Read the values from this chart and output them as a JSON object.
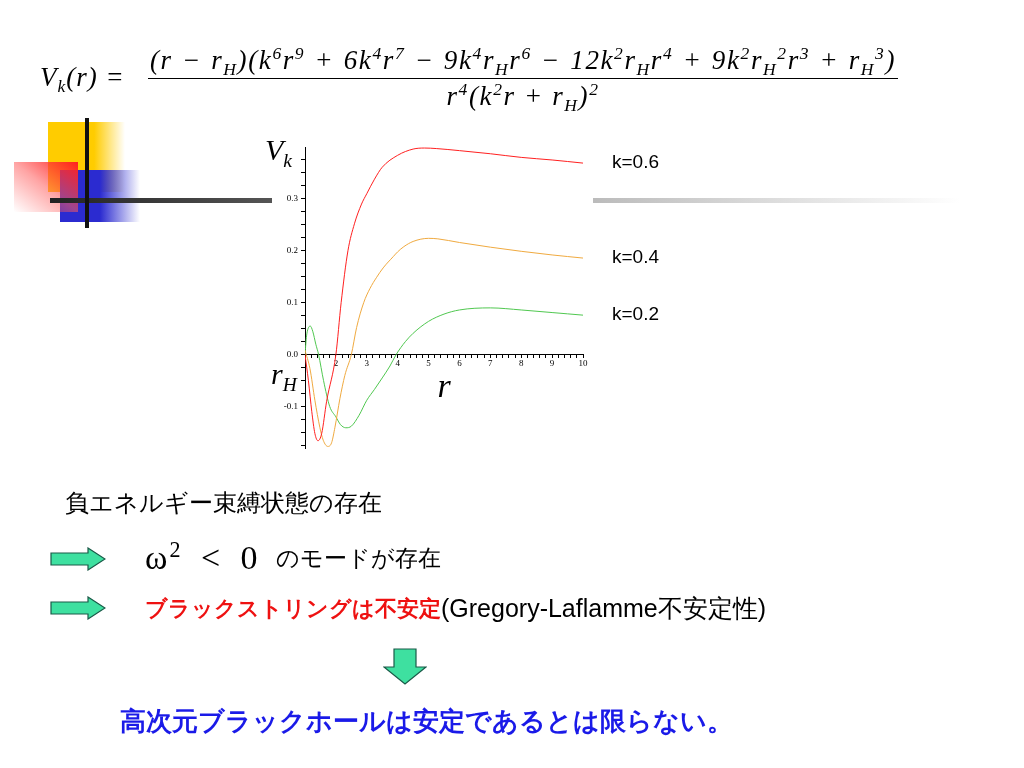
{
  "chart_data": {
    "type": "line",
    "xlabel": "r",
    "ylabel": "V$_{k}$",
    "xlim": [
      1,
      10
    ],
    "xticks": [
      {
        "value": 1.2,
        "label": null
      },
      {
        "value": 1.4,
        "label": null
      },
      {
        "value": 1.6,
        "label": null
      },
      {
        "value": 1.8,
        "label": null
      },
      2,
      {
        "value": 2.2,
        "label": null
      },
      {
        "value": 2.4,
        "label": null
      },
      {
        "value": 2.6,
        "label": null
      },
      {
        "value": 2.8,
        "label": null
      },
      3,
      {
        "value": 3.2,
        "label": null
      },
      {
        "value": 3.4,
        "label": null
      },
      {
        "value": 3.6,
        "label": null
      },
      {
        "value": 3.8,
        "label": null
      },
      4,
      {
        "value": 4.2,
        "label": null
      },
      {
        "value": 4.4,
        "label": null
      },
      {
        "value": 4.6,
        "label": null
      },
      {
        "value": 4.8,
        "label": null
      },
      5,
      {
        "value": 5.2,
        "label": null
      },
      {
        "value": 5.4,
        "label": null
      },
      {
        "value": 5.6,
        "label": null
      },
      {
        "value": 5.8,
        "label": null
      },
      6,
      {
        "value": 6.2,
        "label": null
      },
      {
        "value": 6.4,
        "label": null
      },
      {
        "value": 6.6,
        "label": null
      },
      {
        "value": 6.8,
        "label": null
      },
      7,
      {
        "value": 7.2,
        "label": null
      },
      {
        "value": 7.4,
        "label": null
      },
      {
        "value": 7.6,
        "label": null
      },
      {
        "value": 7.8,
        "label": null
      },
      8,
      {
        "value": 8.2,
        "label": null
      },
      {
        "value": 8.4,
        "label": null
      },
      {
        "value": 8.6,
        "label": null
      },
      {
        "value": 8.8,
        "label": null
      },
      9,
      {
        "value": 9.2,
        "label": null
      },
      {
        "value": 9.4,
        "label": null
      },
      {
        "value": 9.6,
        "label": null
      },
      {
        "value": 9.8,
        "label": null
      },
      10
    ],
    "ylim": [
      -0.18,
      0.4
    ],
    "yticks": [
      {
        "value": -0.175,
        "label": null
      },
      {
        "value": -0.15,
        "label": null
      },
      {
        "value": -0.125,
        "label": null
      },
      -0.1,
      {
        "value": -0.075,
        "label": null
      },
      {
        "value": -0.05,
        "label": null
      },
      {
        "value": -0.025,
        "label": null
      },
      {
        "value": 0,
        "label": "0.0"
      },
      {
        "value": 0.025,
        "label": null
      },
      {
        "value": 0.05,
        "label": null
      },
      {
        "value": 0.075,
        "label": null
      },
      0.1,
      {
        "value": 0.125,
        "label": null
      },
      {
        "value": 0.15,
        "label": null
      },
      {
        "value": 0.175,
        "label": null
      },
      0.2,
      {
        "value": 0.225,
        "label": null
      },
      {
        "value": 0.25,
        "label": null
      },
      {
        "value": 0.275,
        "label": null
      },
      0.3,
      {
        "value": 0.325,
        "label": null
      },
      {
        "value": 0.35,
        "label": null
      },
      {
        "value": 0.375,
        "label": null
      }
    ],
    "marker": "none",
    "series": [
      {
        "name": "k=0.6",
        "color": "#ff2020",
        "x": [
          1,
          1.11,
          1.22,
          1.32,
          1.42,
          1.54,
          1.7,
          2,
          2.17,
          2.39,
          2.6,
          2.83,
          3,
          3.25,
          3.5,
          4,
          4.5,
          4.87,
          5.25,
          6,
          7,
          8,
          9,
          10
        ],
        "values": [
          0,
          -0.05,
          -0.11,
          -0.152,
          -0.166,
          -0.152,
          -0.09,
          0,
          0.1,
          0.2,
          0.252,
          0.29,
          0.31,
          0.338,
          0.361,
          0.384,
          0.396,
          0.398,
          0.397,
          0.393,
          0.387,
          0.38,
          0.375,
          0.369
        ]
      },
      {
        "name": "k=0.4",
        "color": "#f0aa40",
        "x": [
          1,
          1.16,
          1.32,
          1.48,
          1.59,
          1.74,
          1.86,
          1.97,
          2.13,
          2.29,
          2.5,
          2.67,
          2.9,
          3.1,
          3.32,
          3.53,
          3.86,
          4,
          4.2,
          4.5,
          5,
          5.3,
          6,
          7,
          8,
          9,
          10
        ],
        "values": [
          0.008,
          -0.027,
          -0.088,
          -0.14,
          -0.165,
          -0.177,
          -0.17,
          -0.14,
          -0.085,
          -0.04,
          0,
          0.052,
          0.1,
          0.127,
          0.149,
          0.167,
          0.189,
          0.198,
          0.208,
          0.218,
          0.224,
          0.223,
          0.216,
          0.207,
          0.199,
          0.192,
          0.186
        ]
      },
      {
        "name": "k=0.2",
        "color": "#50c850",
        "x": [
          1,
          1.05,
          1.1,
          1.17,
          1.25,
          1.35,
          1.44,
          1.6,
          1.8,
          2,
          2.15,
          2.32,
          2.5,
          2.75,
          3,
          3.25,
          3.5,
          3.75,
          3.95,
          4.25,
          4.5,
          5,
          5.5,
          6,
          7,
          8,
          9,
          10
        ],
        "values": [
          0,
          0.036,
          0.05,
          0.055,
          0.045,
          0.02,
          0,
          -0.05,
          -0.1,
          -0.12,
          -0.135,
          -0.141,
          -0.138,
          -0.117,
          -0.088,
          -0.067,
          -0.045,
          -0.022,
          0,
          0.025,
          0.041,
          0.064,
          0.078,
          0.086,
          0.09,
          0.086,
          0.081,
          0.076
        ]
      }
    ],
    "annotations": [
      "V$_{k}$(r) =",
      "(r − r$_{H}$)(k$^{6}$r$^{9}$ + 6k$^{4}$r$^{7}$ − 9k$^{4}$r$_{H}$r$^{6}$ − 12k$^{2}$r$_{H}$r$^{4}$ + 9k$^{2}$r$_{H}$$^{2}$r$^{3}$ + r$_{H}$$^{3}$)",
      "r$^{4}$(k$^{2}$r + r$_{H}$)$^{2}$",
      {
        "text": "r$_{H}$",
        "x": 1,
        "y": 0
      },
      "負エネルギー束縛状態の存在",
      "ω$^{2}$ < 0",
      "のモードが存在",
      "ブラックストリングは不安定",
      "(Gregory-Laflamme不安定性)",
      "高次元ブラックホールは安定であるとは限らない。"
    ]
  }
}
